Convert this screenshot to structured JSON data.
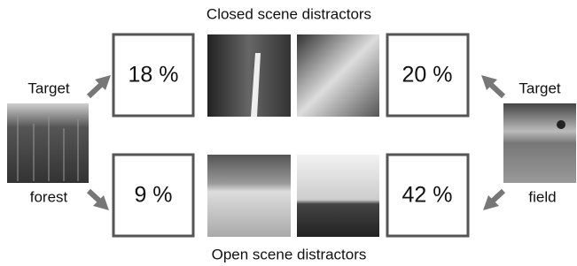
{
  "top_label": "Closed scene distractors",
  "bottom_label": "Open scene distractors",
  "left_target": {
    "top_text": "Target",
    "bottom_text": "forest"
  },
  "right_target": {
    "top_text": "Target",
    "bottom_text": "field"
  },
  "results": {
    "closed_forest": "18 %",
    "closed_field": "20 %",
    "open_forest": "9 %",
    "open_field": "42 %"
  }
}
